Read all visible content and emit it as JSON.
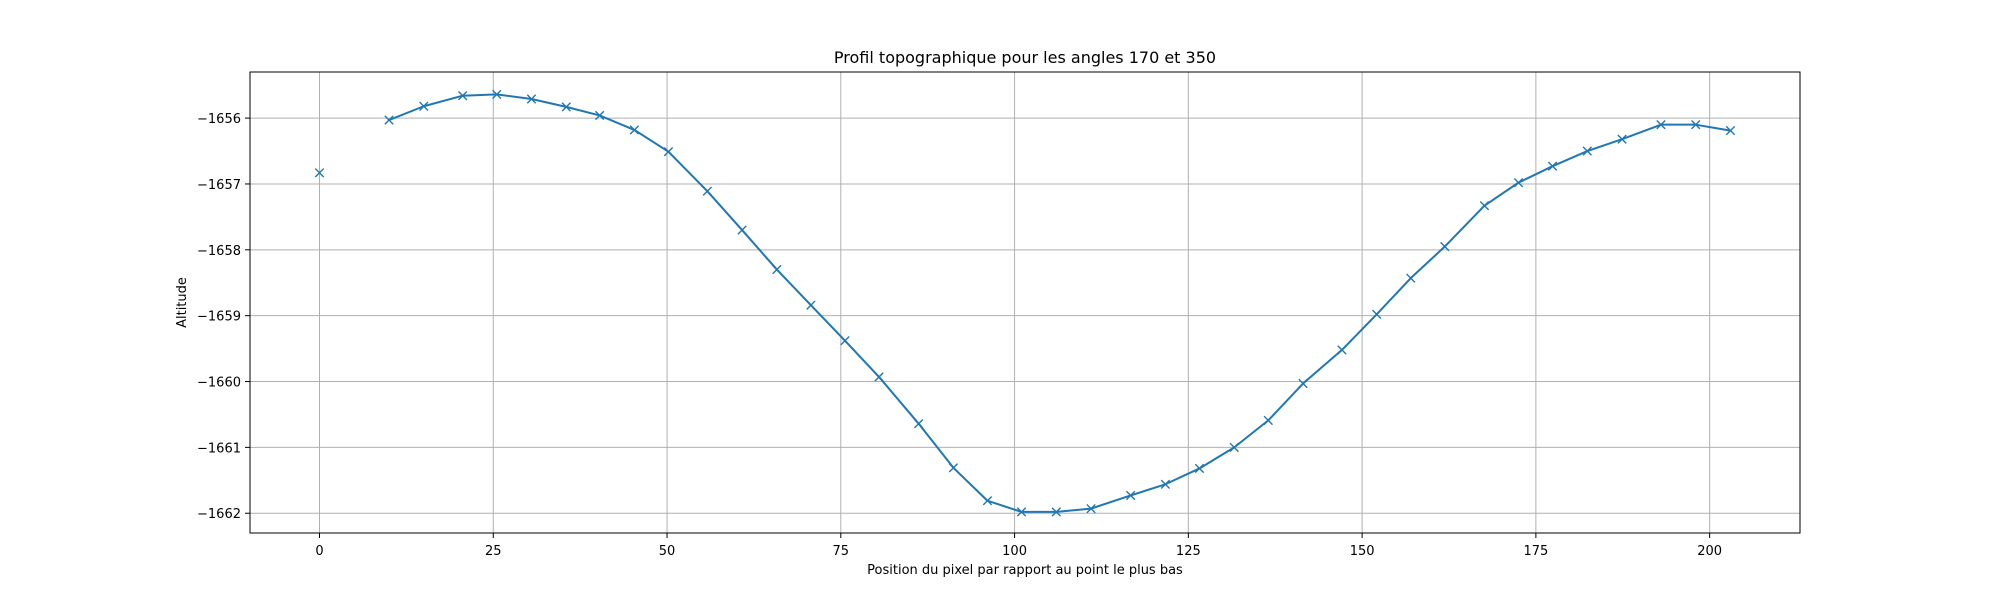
{
  "chart_data": {
    "type": "line",
    "title": "Profil topographique pour les angles 170 et 350",
    "xlabel": "Position du pixel par rapport au point le plus bas",
    "ylabel": "Altitude",
    "xlim": [
      -10,
      213
    ],
    "ylim": [
      -1662.3,
      -1655.3
    ],
    "xticks": [
      0,
      25,
      50,
      75,
      100,
      125,
      150,
      175,
      200
    ],
    "xtick_labels": [
      "0",
      "25",
      "50",
      "75",
      "100",
      "125",
      "150",
      "175",
      "200"
    ],
    "yticks": [
      -1656,
      -1657,
      -1658,
      -1659,
      -1660,
      -1661,
      -1662
    ],
    "ytick_labels": [
      "−1656",
      "−1657",
      "−1658",
      "−1659",
      "−1660",
      "−1661",
      "−1662"
    ],
    "grid": true,
    "marker": "x",
    "color": "#1f77b4",
    "series": [
      {
        "segments": [
          [
            [
              0,
              -1656.83
            ]
          ],
          [
            [
              10,
              -1656.03
            ],
            [
              15,
              -1655.82
            ],
            [
              20.6,
              -1655.66
            ],
            [
              25.5,
              -1655.64
            ],
            [
              30.5,
              -1655.71
            ],
            [
              35.5,
              -1655.83
            ],
            [
              40.3,
              -1655.96
            ],
            [
              45.3,
              -1656.18
            ],
            [
              50.2,
              -1656.51
            ],
            [
              55.8,
              -1657.11
            ],
            [
              60.8,
              -1657.7
            ],
            [
              65.8,
              -1658.3
            ],
            [
              70.7,
              -1658.84
            ],
            [
              75.6,
              -1659.38
            ],
            [
              80.5,
              -1659.93
            ],
            [
              86.2,
              -1660.64
            ],
            [
              91.2,
              -1661.31
            ],
            [
              96.1,
              -1661.81
            ],
            [
              101,
              -1661.98
            ],
            [
              106,
              -1661.98
            ],
            [
              111,
              -1661.93
            ],
            [
              116.7,
              -1661.73
            ],
            [
              121.7,
              -1661.56
            ],
            [
              126.6,
              -1661.32
            ],
            [
              131.6,
              -1661.0
            ],
            [
              136.5,
              -1660.59
            ],
            [
              141.5,
              -1660.03
            ],
            [
              147.1,
              -1659.52
            ],
            [
              152.1,
              -1658.98
            ],
            [
              157,
              -1658.43
            ],
            [
              161.9,
              -1657.95
            ],
            [
              167.6,
              -1657.33
            ],
            [
              172.5,
              -1656.98
            ],
            [
              177.4,
              -1656.73
            ],
            [
              182.4,
              -1656.5
            ],
            [
              187.4,
              -1656.32
            ],
            [
              193,
              -1656.1
            ],
            [
              198,
              -1656.1
            ],
            [
              203,
              -1656.19
            ]
          ]
        ]
      }
    ]
  }
}
